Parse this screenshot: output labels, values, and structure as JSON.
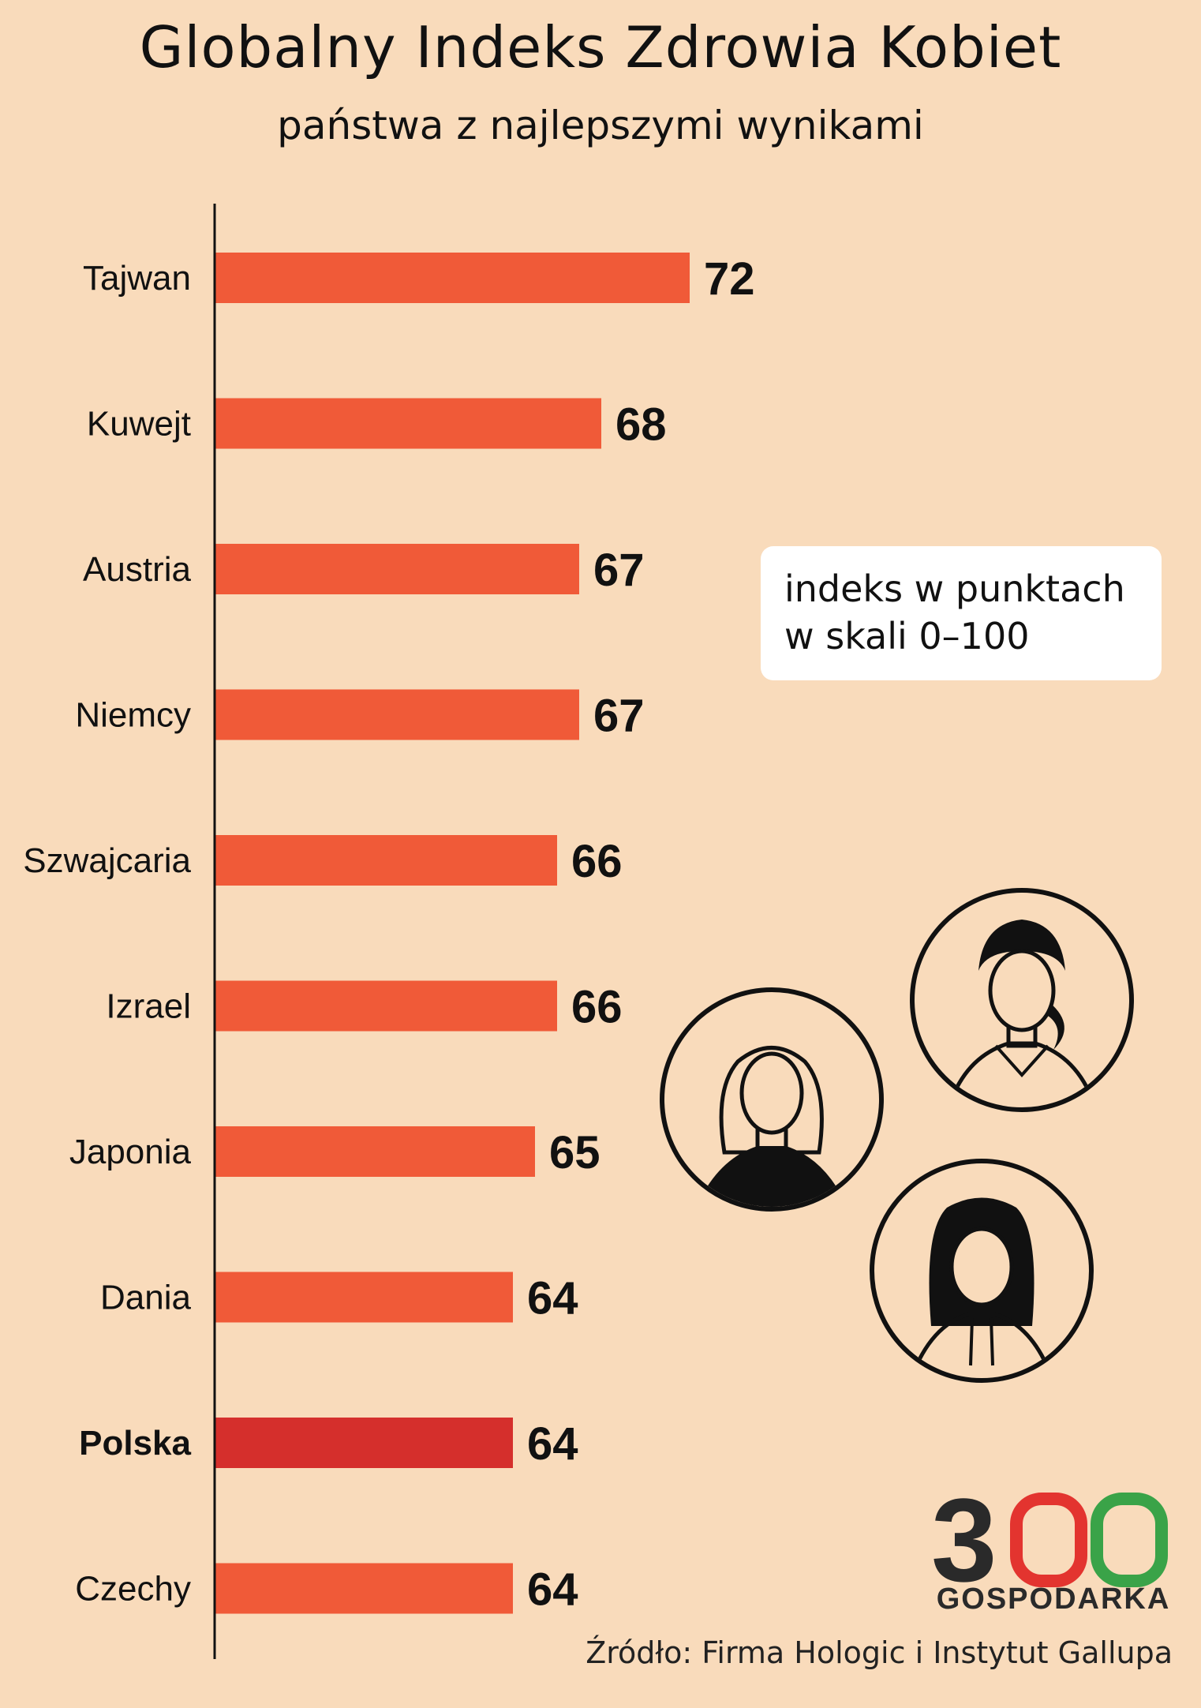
{
  "title": "Globalny Indeks Zdrowia Kobiet",
  "subtitle": "państwa z najlepszymi wynikami",
  "note": {
    "line1": "indeks w punktach",
    "line2": "w skali 0–100"
  },
  "source": "Źródło: Firma Hologic i Instytut Gallupa",
  "logo": {
    "number": "300",
    "text": "GOSPODARKA"
  },
  "colors": {
    "bar": "#f05a38",
    "highlight": "#d52f2c",
    "background": "#f9dbbb",
    "logo_green": "#3aa348",
    "logo_red": "#e3342f",
    "logo_dark": "#2a2a2a"
  },
  "icons": [
    "woman-avatar-icon",
    "woman-avatar-icon",
    "woman-avatar-icon"
  ],
  "chart_data": {
    "type": "bar",
    "orientation": "horizontal",
    "categories": [
      "Tajwan",
      "Kuwejt",
      "Austria",
      "Niemcy",
      "Szwajcaria",
      "Izrael",
      "Japonia",
      "Dania",
      "Polska",
      "Czechy"
    ],
    "values": [
      72,
      68,
      67,
      67,
      66,
      66,
      65,
      64,
      64,
      64
    ],
    "highlight": "Polska",
    "title": "Globalny Indeks Zdrowia Kobiet",
    "subtitle": "państwa z najlepszymi wynikami",
    "data_labels": true,
    "grid": false
  }
}
